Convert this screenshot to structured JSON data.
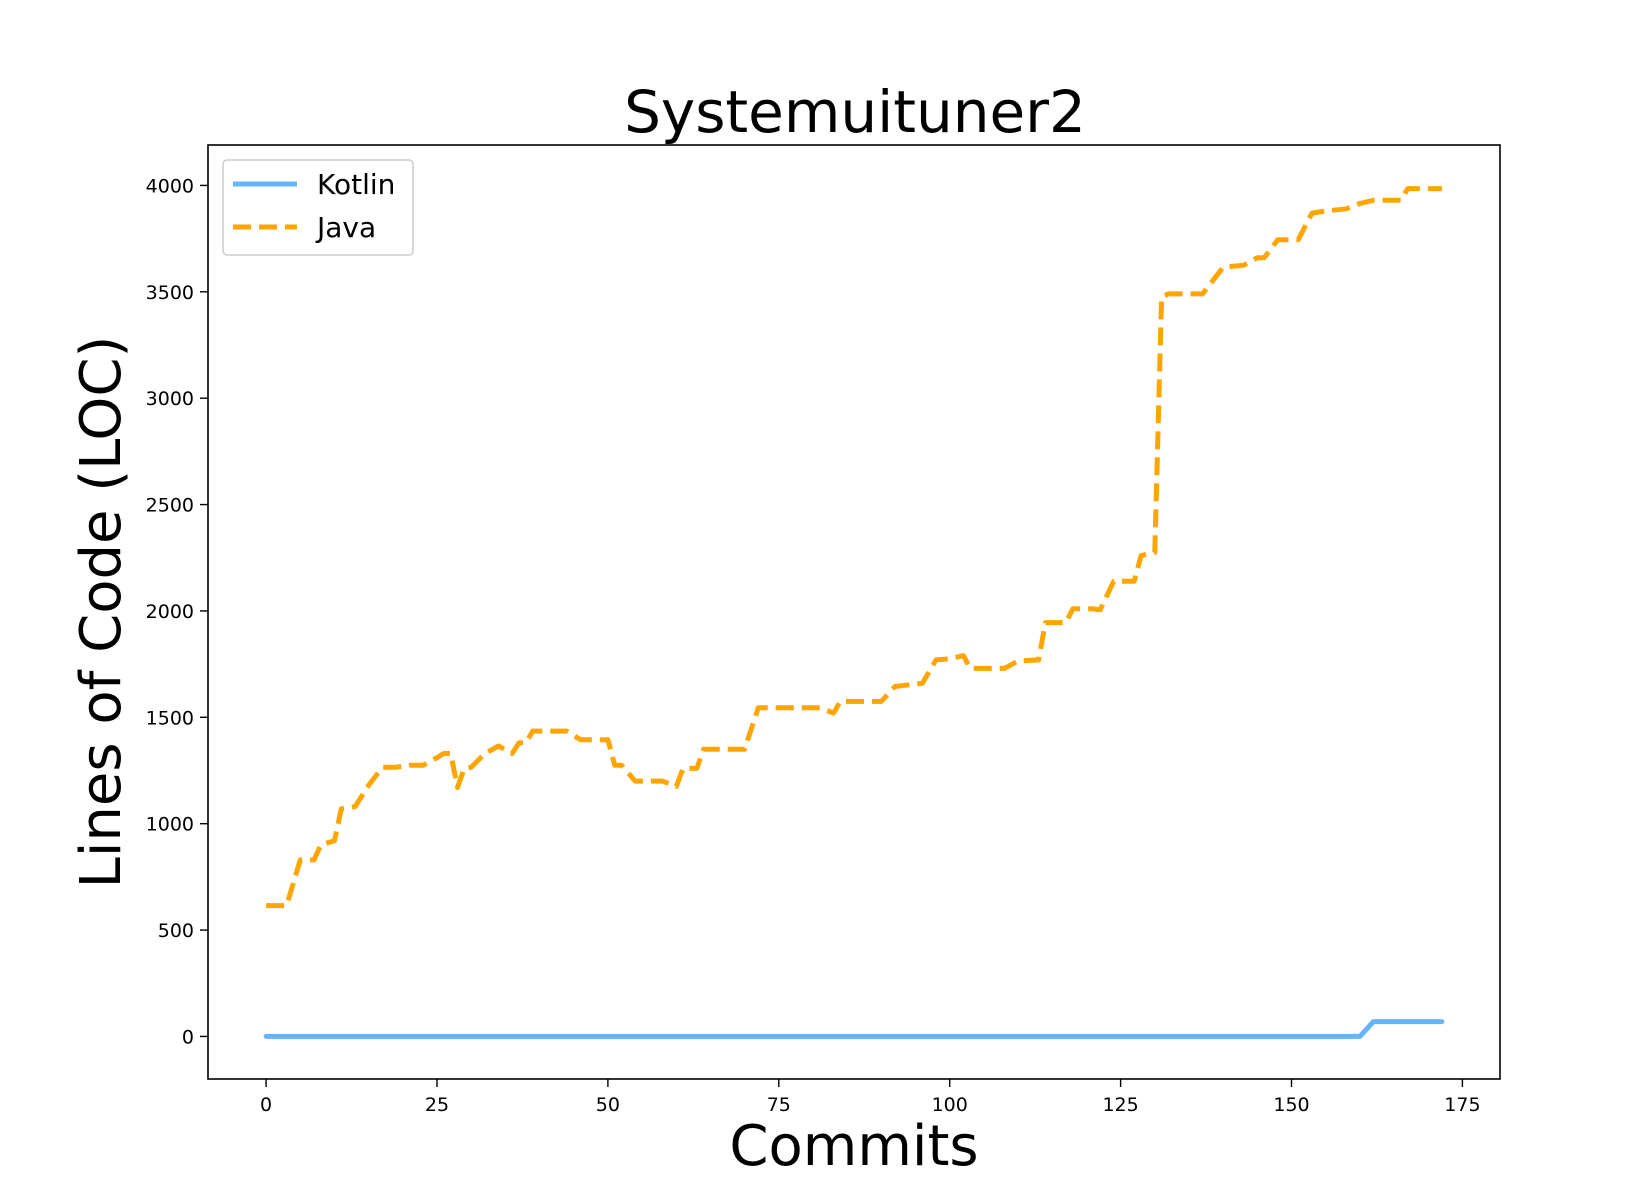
{
  "chart_data": {
    "type": "line",
    "title": "Systemuituner2",
    "xlabel": "Commits",
    "ylabel": "Lines of Code (LOC)",
    "xlim": [
      -8.5,
      180.5
    ],
    "ylim": [
      -200,
      4190
    ],
    "xticks": [
      0,
      25,
      50,
      75,
      100,
      125,
      150,
      175
    ],
    "yticks": [
      0,
      500,
      1000,
      1500,
      2000,
      2500,
      3000,
      3500,
      4000
    ],
    "legend_position": "upper-left",
    "grid": false,
    "series": [
      {
        "name": "Kotlin",
        "color": "#66b3ff",
        "dash": "solid",
        "points": [
          [
            0,
            0
          ],
          [
            160,
            0
          ],
          [
            162,
            70
          ],
          [
            172,
            70
          ]
        ]
      },
      {
        "name": "Java",
        "color": "#ffa500",
        "dash": "dashed",
        "points": [
          [
            0,
            615
          ],
          [
            3,
            615
          ],
          [
            5,
            830
          ],
          [
            7,
            830
          ],
          [
            8,
            900
          ],
          [
            10,
            920
          ],
          [
            11,
            1070
          ],
          [
            13,
            1080
          ],
          [
            15,
            1180
          ],
          [
            17,
            1265
          ],
          [
            19,
            1265
          ],
          [
            21,
            1275
          ],
          [
            23,
            1275
          ],
          [
            25,
            1310
          ],
          [
            26,
            1330
          ],
          [
            27,
            1330
          ],
          [
            28,
            1170
          ],
          [
            29,
            1260
          ],
          [
            30,
            1265
          ],
          [
            32,
            1330
          ],
          [
            34,
            1365
          ],
          [
            36,
            1330
          ],
          [
            37,
            1380
          ],
          [
            38,
            1380
          ],
          [
            39,
            1435
          ],
          [
            44,
            1435
          ],
          [
            46,
            1395
          ],
          [
            50,
            1395
          ],
          [
            51,
            1275
          ],
          [
            52,
            1275
          ],
          [
            54,
            1200
          ],
          [
            58,
            1200
          ],
          [
            60,
            1175
          ],
          [
            61,
            1260
          ],
          [
            63,
            1260
          ],
          [
            64,
            1350
          ],
          [
            70,
            1350
          ],
          [
            72,
            1545
          ],
          [
            81,
            1545
          ],
          [
            83,
            1520
          ],
          [
            84,
            1575
          ],
          [
            90,
            1575
          ],
          [
            92,
            1645
          ],
          [
            96,
            1660
          ],
          [
            98,
            1770
          ],
          [
            100,
            1775
          ],
          [
            102,
            1790
          ],
          [
            103,
            1730
          ],
          [
            108,
            1730
          ],
          [
            110,
            1765
          ],
          [
            113,
            1770
          ],
          [
            114,
            1945
          ],
          [
            117,
            1945
          ],
          [
            118,
            2010
          ],
          [
            121,
            2010
          ],
          [
            122,
            2005
          ],
          [
            124,
            2140
          ],
          [
            127,
            2140
          ],
          [
            128,
            2260
          ],
          [
            130,
            2275
          ],
          [
            131,
            3475
          ],
          [
            132,
            3490
          ],
          [
            137,
            3490
          ],
          [
            140,
            3615
          ],
          [
            143,
            3625
          ],
          [
            145,
            3660
          ],
          [
            146,
            3660
          ],
          [
            148,
            3745
          ],
          [
            151,
            3745
          ],
          [
            153,
            3870
          ],
          [
            155,
            3880
          ],
          [
            158,
            3890
          ],
          [
            160,
            3915
          ],
          [
            162,
            3930
          ],
          [
            166,
            3930
          ],
          [
            167,
            3985
          ],
          [
            172,
            3985
          ]
        ]
      }
    ]
  }
}
